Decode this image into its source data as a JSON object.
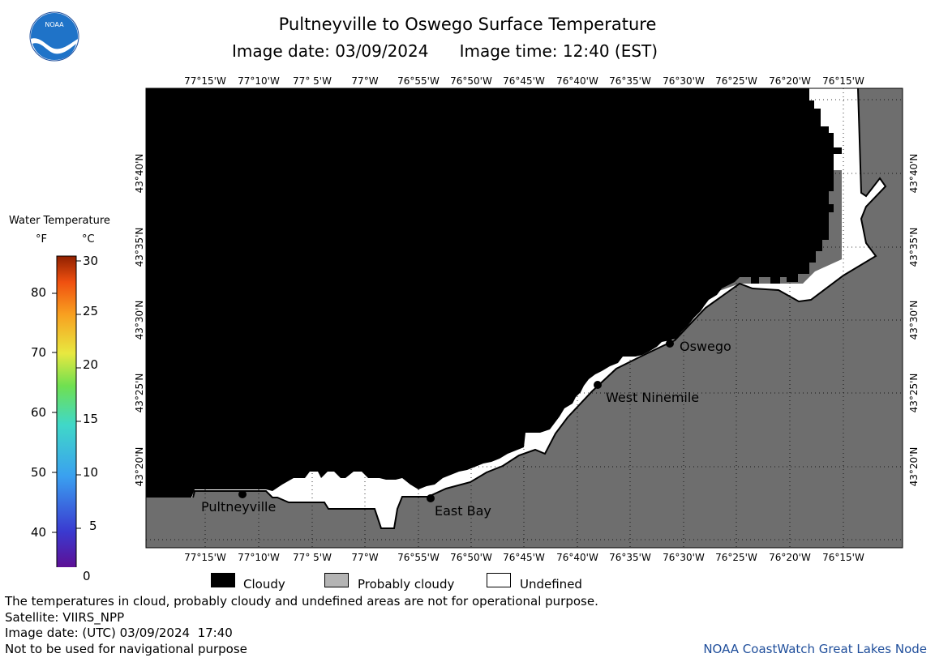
{
  "header": {
    "title": "Pultneyville to Oswego Surface Temperature",
    "image_date_label": "Image date: 03/09/2024",
    "image_time_label": "Image time: 12:40 (EST)"
  },
  "logo": {
    "icon": "noaa-logo-icon",
    "text": "NOAA"
  },
  "map": {
    "lon_labels": [
      "77°15'W",
      "77°10'W",
      "77° 5'W",
      "77°W",
      "76°55'W",
      "76°50'W",
      "76°45'W",
      "76°40'W",
      "76°35'W",
      "76°30'W",
      "76°25'W",
      "76°20'W",
      "76°15'W"
    ],
    "lat_labels": [
      "43°40'N",
      "43°35'N",
      "43°30'N",
      "43°25'N",
      "43°20'N"
    ],
    "places": [
      {
        "name": "Oswego"
      },
      {
        "name": "West Ninemile"
      },
      {
        "name": "Pultneyville"
      },
      {
        "name": "East Bay"
      }
    ],
    "colors": {
      "cloud": "#000000",
      "land": "#6e6e6e",
      "undefined": "#ffffff"
    }
  },
  "legend": {
    "title": "Water Temperature",
    "unit_f": "°F",
    "unit_c": "°C",
    "f_ticks": [
      "80",
      "70",
      "60",
      "50",
      "40"
    ],
    "c_ticks": [
      "30",
      "25",
      "20",
      "15",
      "10",
      "5",
      "0"
    ],
    "swatches": [
      {
        "label": "Cloudy",
        "color": "#000000"
      },
      {
        "label": "Probably cloudy",
        "color": "#b4b4b4"
      },
      {
        "label": "Undefined",
        "color": "#ffffff"
      }
    ]
  },
  "footer": {
    "line1": "The temperatures in cloud, probably cloudy and undefined areas are not for operational purpose.",
    "line2": "Satellite: VIIRS_NPP",
    "line3": "Image date: (UTC) 03/09/2024  17:40",
    "line4": "Not to be used for navigational purpose",
    "credit": "NOAA CoastWatch Great Lakes Node"
  }
}
